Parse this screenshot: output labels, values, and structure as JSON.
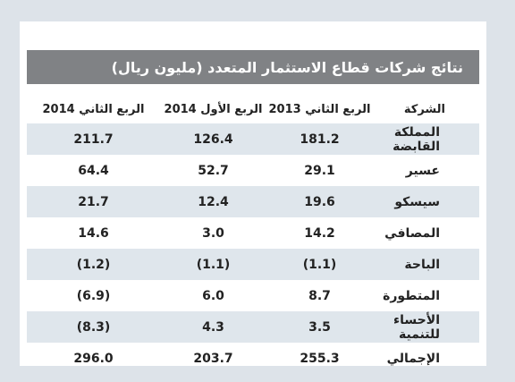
{
  "title": "نتائج شركات قطاع الاستثمار المتعدد (مليون ريال)",
  "columns": {
    "company": "الشركة",
    "q2_2013": "الربع الثاني 2013",
    "q1_2014": "الربع الأول 2014",
    "q2_2014": "الربع الثاني 2014"
  },
  "rows": [
    {
      "company": "المملكة القابضة",
      "q2_2013": "181.2",
      "q1_2014": "126.4",
      "q2_2014": "211.7"
    },
    {
      "company": "عسير",
      "q2_2013": "29.1",
      "q1_2014": "52.7",
      "q2_2014": "64.4"
    },
    {
      "company": "سيسكو",
      "q2_2013": "19.6",
      "q1_2014": "12.4",
      "q2_2014": "21.7"
    },
    {
      "company": "المصافي",
      "q2_2013": "14.2",
      "q1_2014": "3.0",
      "q2_2014": "14.6"
    },
    {
      "company": "الباحة",
      "q2_2013": "(1.1)",
      "q1_2014": "(1.1)",
      "q2_2014": "(1.2)"
    },
    {
      "company": "المتطورة",
      "q2_2013": "8.7",
      "q1_2014": "6.0",
      "q2_2014": "(6.9)"
    },
    {
      "company": "الأحساء للتنمية",
      "q2_2013": "3.5",
      "q1_2014": "4.3",
      "q2_2014": "(8.3)"
    },
    {
      "company": "الإجمالي",
      "q2_2013": "255.3",
      "q1_2014": "203.7",
      "q2_2014": "296.0"
    }
  ]
}
